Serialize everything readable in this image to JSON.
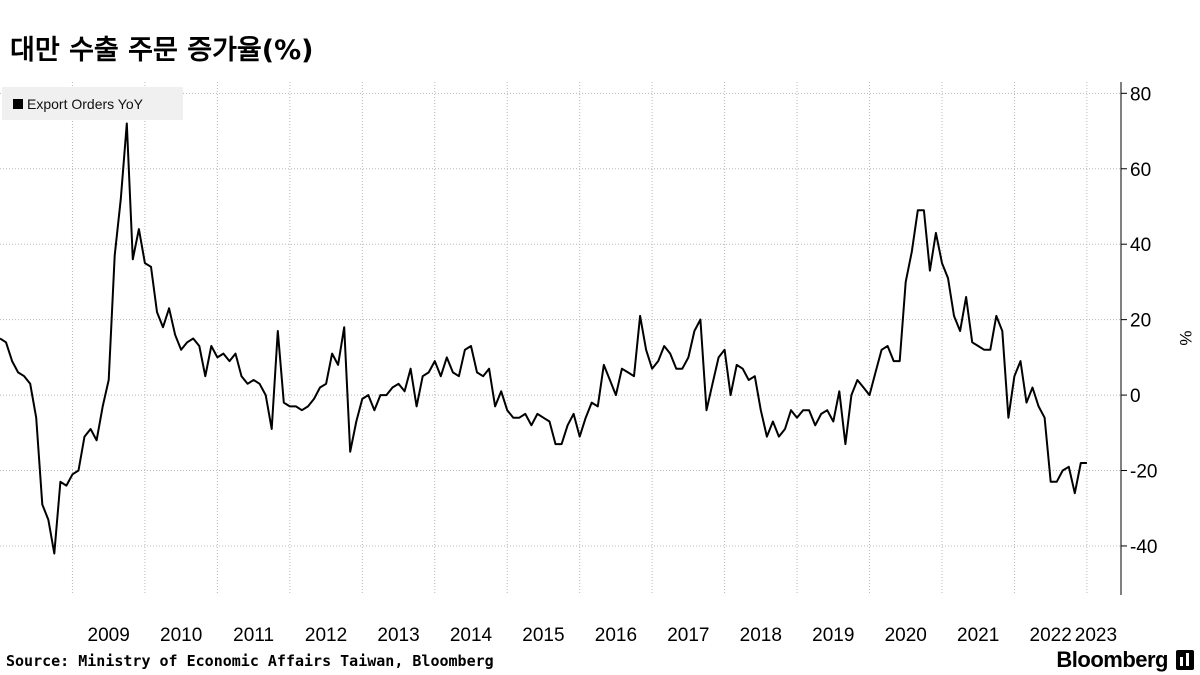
{
  "title": "대만 수출 주문 증가율(%)",
  "legend": {
    "label": "Export Orders YoY",
    "swatch_color": "#000000"
  },
  "footer": {
    "source": "Source: Ministry of Economic Affairs Taiwan, Bloomberg"
  },
  "brand": {
    "name": "Bloomberg",
    "icon": "bloomberg-terminal-icon"
  },
  "chart_data": {
    "type": "line",
    "title": "대만 수출 주문 증가율(%)",
    "ylabel": "%",
    "ylim": [
      -53,
      83
    ],
    "yticks": [
      -40,
      -20,
      0,
      20,
      40,
      60,
      80
    ],
    "ytick_labels": [
      "-40",
      "-20",
      "0",
      "20",
      "40",
      "60",
      "80"
    ],
    "x_axis": "year",
    "xlim": [
      2008.0,
      2023.25
    ],
    "xticks": [
      "2009",
      "2010",
      "2011",
      "2012",
      "2013",
      "2014",
      "2015",
      "2016",
      "2017",
      "2018",
      "2019",
      "2020",
      "2021",
      "2022",
      "2023"
    ],
    "grid": true,
    "legend_position": "top-left",
    "series": [
      {
        "name": "Export Orders YoY",
        "color": "#000000",
        "start": "2008-01",
        "frequency": "monthly",
        "values": [
          15,
          14,
          9,
          6,
          5,
          3,
          -6,
          -29,
          -33,
          -42,
          -23,
          -24,
          -21,
          -20,
          -11,
          -9,
          -12,
          -3,
          4,
          37,
          52,
          72,
          36,
          44,
          35,
          34,
          22,
          18,
          23,
          16,
          12,
          14,
          15,
          13,
          5,
          13,
          10,
          11,
          9,
          11,
          5,
          3,
          4,
          3,
          0,
          -9,
          17,
          -2,
          -3,
          -3,
          -4,
          -3,
          -1,
          2,
          3,
          11,
          8,
          18,
          -15,
          -7,
          -1,
          0,
          -4,
          0,
          0,
          2,
          3,
          1,
          7,
          -3,
          5,
          6,
          9,
          5,
          10,
          6,
          5,
          12,
          13,
          6,
          5,
          7,
          -3,
          1,
          -4,
          -6,
          -6,
          -5,
          -8,
          -5,
          -6,
          -7,
          -13,
          -13,
          -8,
          -5,
          -11,
          -6,
          -2,
          -3,
          8,
          4,
          0,
          7,
          6,
          5,
          21,
          12,
          7,
          9,
          13,
          11,
          7,
          7,
          10,
          17,
          20,
          -4,
          3,
          10,
          12,
          0,
          8,
          7,
          4,
          5,
          -4,
          -11,
          -7,
          -11,
          -9,
          -4,
          -6,
          -4,
          -4,
          -8,
          -5,
          -4,
          -7,
          1,
          -13,
          0,
          4,
          2,
          0,
          6,
          12,
          13,
          9,
          9,
          30,
          38,
          49,
          49,
          33,
          43,
          35,
          31,
          21,
          17,
          26,
          14,
          13,
          12,
          12,
          21,
          17,
          -6,
          5,
          9,
          -2,
          2,
          -3,
          -6,
          -23,
          -23,
          -20,
          -19,
          -26,
          -18,
          -18
        ]
      }
    ]
  }
}
